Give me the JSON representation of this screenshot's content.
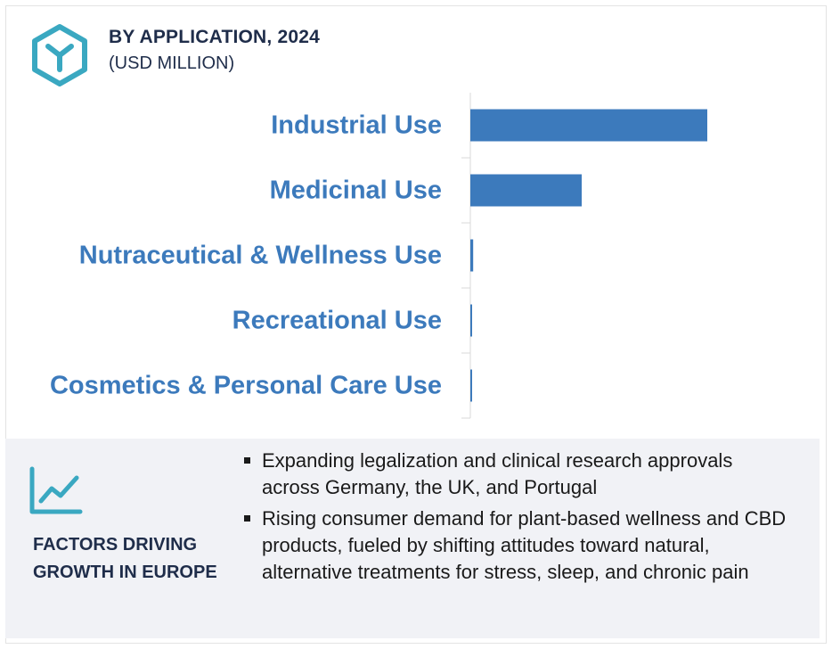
{
  "header": {
    "title": "BY APPLICATION, 2024",
    "subtitle": "(USD MILLION)",
    "icon": "cube-y-icon"
  },
  "chart_data": {
    "type": "bar",
    "orientation": "horizontal",
    "categories": [
      "Industrial Use",
      "Medicinal Use",
      "Nutraceutical & Wellness Use",
      "Recreational Use",
      "Cosmetics & Personal Care Use"
    ],
    "values": [
      100,
      47,
      1.2,
      0.6,
      0.5
    ],
    "bar_color": "#3c7abc",
    "label_color": "#3c7abc",
    "value_labels": false,
    "grid": false
  },
  "factors": {
    "icon": "trend-line-icon",
    "heading": "FACTORS DRIVING GROWTH IN EUROPE",
    "items": [
      "Expanding legalization and clinical research approvals across Germany, the UK, and Portugal",
      "Rising consumer demand for plant-based wellness and CBD products, fueled by shifting attitudes toward natural, alternative treatments for stress, sleep, and chronic pain"
    ]
  },
  "colors": {
    "accent": "#3c7abc",
    "icon_teal": "#3aa8c1",
    "heading_navy": "#1f2d4a",
    "panel_bg": "#f1f2f6"
  }
}
